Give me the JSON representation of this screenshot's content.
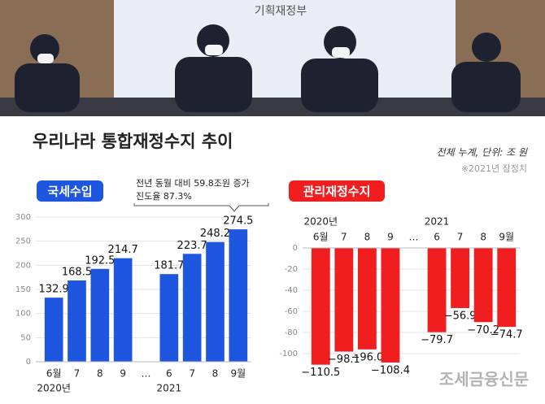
{
  "photo_sign": "기획재정부",
  "title": "우리나라 통합재정수지 추이",
  "note": "전체 누계, 단위: 조 원",
  "note2": "※2021년 잠정치",
  "watermark": "조세금융신문",
  "chart_data": [
    {
      "type": "bar",
      "title": "국세수입",
      "color": "#1f56e0",
      "categories": [
        "6월",
        "7",
        "8",
        "9",
        "…",
        "6",
        "7",
        "8",
        "9월"
      ],
      "values": [
        132.9,
        168.5,
        192.5,
        214.7,
        null,
        181.7,
        223.7,
        248.2,
        274.5
      ],
      "year_labels": [
        "2020년",
        "2021"
      ],
      "annotations": [
        "전년 동월 대비 59.8조원 증가",
        "진도율 87.3%"
      ],
      "ylim": [
        0,
        300
      ],
      "yticks": [
        0,
        50,
        100,
        150,
        200,
        250,
        300
      ],
      "grid": true
    },
    {
      "type": "bar",
      "title": "관리재정수지",
      "color": "#f01e1e",
      "categories": [
        "6월",
        "7",
        "8",
        "9",
        "…",
        "6",
        "7",
        "8",
        "9월"
      ],
      "values": [
        -110.5,
        -98.1,
        -96.0,
        -108.4,
        null,
        -79.7,
        -56.9,
        -70.2,
        -74.7
      ],
      "value_labels": [
        "−110.5",
        "−98.1",
        "−96.0",
        "−108.4",
        null,
        "−79.7",
        "−56.9",
        "−70.2",
        "−74.7"
      ],
      "year_labels": [
        "2020년",
        "2021"
      ],
      "ylim": [
        -120,
        0
      ],
      "yticks": [
        0,
        -20,
        -40,
        -60,
        -80,
        -100
      ],
      "grid": true
    }
  ]
}
